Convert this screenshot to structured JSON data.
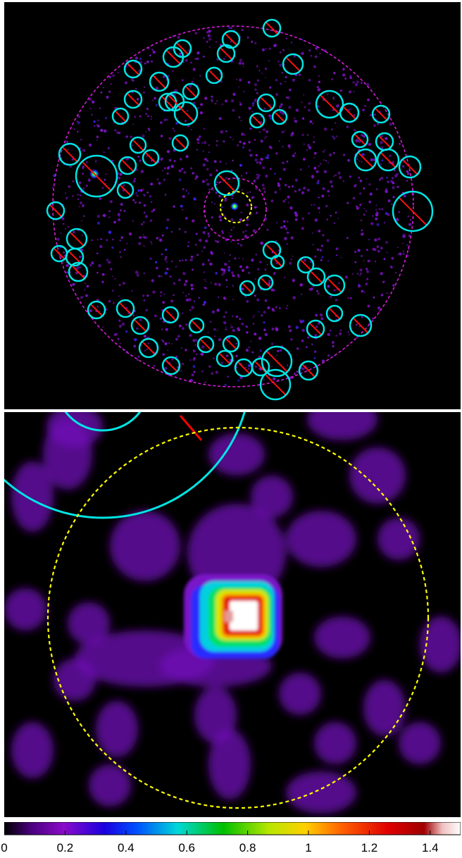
{
  "colorbar": {
    "min": 0,
    "max": 1.5,
    "colormap": "rainbow (black-purple-blue-green-yellow-red-white)",
    "ticks": [
      "0",
      "0.2",
      "0.4",
      "0.6",
      "0.8",
      "1",
      "1.2",
      "1.4"
    ],
    "tick_values": [
      0,
      0.2,
      0.4,
      0.6,
      0.8,
      1.0,
      1.2,
      1.4
    ]
  },
  "colors": {
    "background": "#000000",
    "source_circle": "#00e5e5",
    "exclusion_line": "#ff0000",
    "field_boundary": "#d81bd8",
    "target_region": "#ffff00",
    "event_purple": "#7d12c4"
  },
  "panels": {
    "top": {
      "content": "full-field image with marked point sources, dashed magenta field boundary, dashed yellow target region"
    },
    "bottom": {
      "content": "zoom on central source with dashed yellow target circle"
    }
  }
}
